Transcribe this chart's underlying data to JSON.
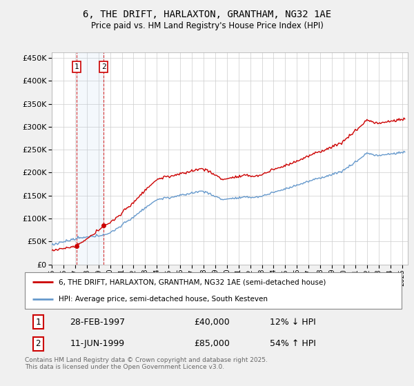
{
  "title": "6, THE DRIFT, HARLAXTON, GRANTHAM, NG32 1AE",
  "subtitle": "Price paid vs. HM Land Registry's House Price Index (HPI)",
  "legend_line1": "6, THE DRIFT, HARLAXTON, GRANTHAM, NG32 1AE (semi-detached house)",
  "legend_line2": "HPI: Average price, semi-detached house, South Kesteven",
  "transaction1_date": "28-FEB-1997",
  "transaction1_price": "£40,000",
  "transaction1_hpi": "12% ↓ HPI",
  "transaction2_date": "11-JUN-1999",
  "transaction2_price": "£85,000",
  "transaction2_hpi": "54% ↑ HPI",
  "footer": "Contains HM Land Registry data © Crown copyright and database right 2025.\nThis data is licensed under the Open Government Licence v3.0.",
  "property_color": "#cc0000",
  "hpi_color": "#6699cc",
  "background_color": "#f0f0f0",
  "plot_bg_color": "#ffffff",
  "grid_color": "#cccccc",
  "label_box_color": "#cc0000",
  "ylim": [
    0,
    462500
  ],
  "yticks": [
    0,
    50000,
    100000,
    150000,
    200000,
    250000,
    300000,
    350000,
    400000,
    450000
  ],
  "t1_year": 1997.12,
  "t1_price": 40000,
  "t2_year": 1999.45,
  "t2_price": 85000,
  "xlim_left": 1995.0,
  "xlim_right": 2025.5
}
